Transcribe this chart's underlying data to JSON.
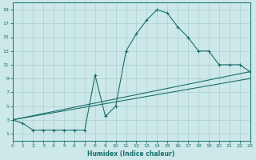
{
  "xlabel": "Humidex (Indice chaleur)",
  "bg_color": "#cce8e8",
  "grid_color": "#aacfcf",
  "line_color": "#1a6e6e",
  "xlim": [
    0,
    23
  ],
  "ylim": [
    0,
    20
  ],
  "yticks": [
    1,
    3,
    5,
    7,
    9,
    11,
    13,
    15,
    17,
    19
  ],
  "curve1_x": [
    0,
    1,
    2,
    3,
    4,
    5,
    6,
    7,
    8,
    9,
    10,
    11,
    12,
    13,
    14,
    15,
    16,
    17,
    18,
    19,
    20,
    21,
    22,
    23
  ],
  "curve1_y": [
    3,
    2.5,
    1.5,
    1.5,
    1.5,
    1.5,
    1.5,
    1.5,
    9.5,
    3.5,
    5.0,
    13.0,
    15.5,
    17.5,
    19.0,
    18.5,
    16.5,
    15.0,
    13.0,
    13.0,
    11.0,
    11.0,
    11.0,
    10.0
  ],
  "line2_x": [
    0,
    23
  ],
  "line2_y": [
    3,
    10.0
  ],
  "line3_x": [
    0,
    23
  ],
  "line3_y": [
    3,
    9.0
  ]
}
